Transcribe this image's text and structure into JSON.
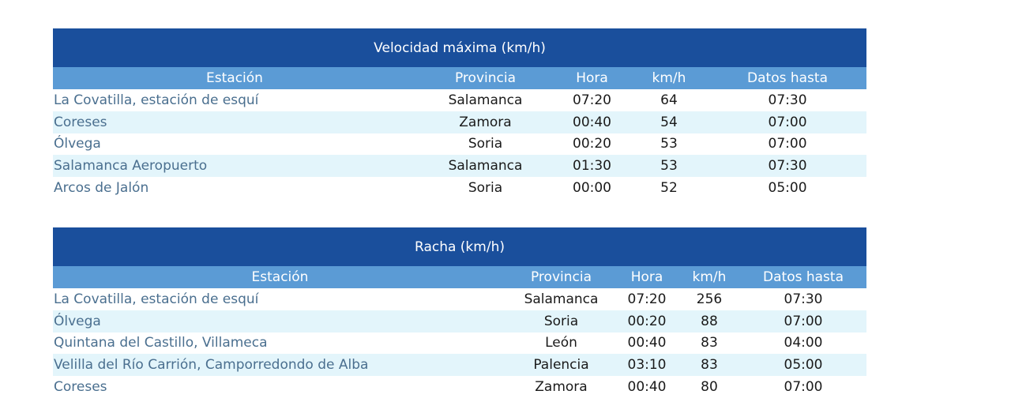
{
  "tables": [
    {
      "title": "Velocidad máxima (km/h)",
      "headers": [
        "Estación",
        "Provincia",
        "Hora",
        "km/h",
        "Datos hasta"
      ],
      "rows": [
        [
          "La Covatilla, estación de esquí",
          "Salamanca",
          "07:20",
          "64",
          "07:30"
        ],
        [
          "Coreses",
          "Zamora",
          "00:40",
          "54",
          "07:00"
        ],
        [
          "Ólvega",
          "Soria",
          "00:20",
          "53",
          "07:00"
        ],
        [
          "Salamanca Aeropuerto",
          "Salamanca",
          "01:30",
          "53",
          "07:30"
        ],
        [
          "Arcos de Jalón",
          "Soria",
          "00:00",
          "52",
          "05:00"
        ]
      ]
    },
    {
      "title": "Racha (km/h)",
      "headers": [
        "Estación",
        "Provincia",
        "Hora",
        "km/h",
        "Datos hasta"
      ],
      "rows": [
        [
          "La Covatilla, estación de esquí",
          "Salamanca",
          "07:20",
          "256",
          "07:30"
        ],
        [
          "Ólvega",
          "Soria",
          "00:20",
          "88",
          "07:00"
        ],
        [
          "Quintana del Castillo, Villameca",
          "León",
          "00:40",
          "83",
          "04:00"
        ],
        [
          "Velilla del Río Carrión, Camporredondo de Alba",
          "Palencia",
          "03:10",
          "83",
          "05:00"
        ],
        [
          "Coreses",
          "Zamora",
          "00:40",
          "80",
          "07:00"
        ]
      ]
    }
  ],
  "colors": {
    "title_background": "#1a4f9c",
    "header_background": "#5b9bd5",
    "alt_row_background": "#e3f5fb",
    "station_text": "#4a6f8f"
  }
}
